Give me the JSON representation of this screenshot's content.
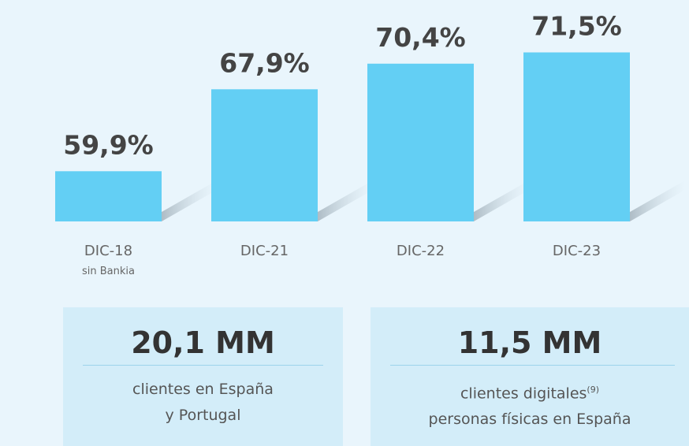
{
  "chart_data": {
    "type": "bar",
    "categories": [
      "DIC-18",
      "DIC-21",
      "DIC-22",
      "DIC-23"
    ],
    "category_sublabels": [
      "sin Bankia",
      null,
      null,
      null
    ],
    "values": [
      59.9,
      67.9,
      70.4,
      71.5
    ],
    "value_labels": [
      "59,9%",
      "67,9%",
      "70,4%",
      "71,5%"
    ],
    "color": "#63cff4",
    "ylim": [
      55,
      72
    ]
  },
  "stats": [
    {
      "value": "20,1 MM",
      "lines": [
        "clientes en España",
        "y Portugal"
      ],
      "superscript": null
    },
    {
      "value": "11,5 MM",
      "lines": [
        "clientes digitales",
        "personas físicas en España"
      ],
      "superscript": "(9)"
    }
  ]
}
